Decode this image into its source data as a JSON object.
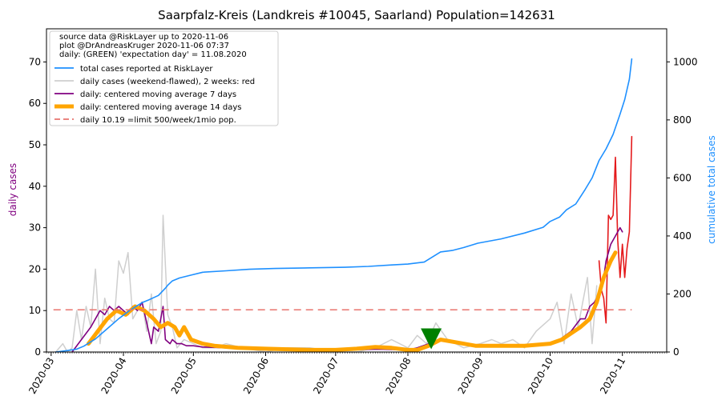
{
  "chart_data": {
    "type": "line",
    "title": "Saarpfalz-Kreis (Landkreis #10045, Saarland) Population=142631",
    "ylabel_left": "daily cases",
    "ylabel_right": "cumulative total cases",
    "ylim_left": [
      0,
      78
    ],
    "ylim_right": [
      0,
      1114
    ],
    "xlim": [
      "2020-02-28",
      "2020-11-20"
    ],
    "yticks_left": [
      0,
      10,
      20,
      30,
      40,
      50,
      60,
      70
    ],
    "yticks_right": [
      0,
      200,
      400,
      600,
      800,
      1000
    ],
    "xticks": [
      "2020-03",
      "2020-04",
      "2020-05",
      "2020-06",
      "2020-07",
      "2020-08",
      "2020-09",
      "2020-10",
      "2020-11"
    ],
    "legend": {
      "position": "top-left",
      "header": [
        "source data @RiskLayer up to 2020-11-06",
        "plot @DrAndreasKruger 2020-11-06 07:37",
        "daily: (GREEN) 'expectation day' = 11.08.2020"
      ],
      "entries": [
        {
          "label": "total cases reported at RiskLayer",
          "color": "#1e90ff",
          "style": "line"
        },
        {
          "label": "daily cases (weekend-flawed), 2 weeks: red",
          "color": "#cfcfcf",
          "style": "line"
        },
        {
          "label": "daily: centered moving average 7 days",
          "color": "#800080",
          "style": "line"
        },
        {
          "label": "daily: centered moving average 14 days",
          "color": "#ffa500",
          "style": "thick"
        },
        {
          "label": "daily 10.19 =limit 500/week/1mio pop.",
          "color": "#e8746e",
          "style": "dashed"
        }
      ]
    },
    "limit_line": {
      "value": 10.19,
      "x_start": "2020-03-02",
      "x_end": "2020-11-05"
    },
    "expectation_day": {
      "x": "2020-08-11",
      "y": 3
    },
    "series": [
      {
        "name": "total cases reported at RiskLayer",
        "axis": "right",
        "color": "#1e90ff",
        "x": [
          "2020-03-03",
          "2020-03-08",
          "2020-03-12",
          "2020-03-15",
          "2020-03-20",
          "2020-03-25",
          "2020-03-30",
          "2020-04-04",
          "2020-04-09",
          "2020-04-12",
          "2020-04-16",
          "2020-04-19",
          "2020-04-20",
          "2020-04-22",
          "2020-04-25",
          "2020-04-30",
          "2020-05-05",
          "2020-05-15",
          "2020-05-25",
          "2020-06-05",
          "2020-06-20",
          "2020-07-05",
          "2020-07-15",
          "2020-07-25",
          "2020-08-01",
          "2020-08-08",
          "2020-08-15",
          "2020-08-20",
          "2020-08-25",
          "2020-08-31",
          "2020-09-10",
          "2020-09-20",
          "2020-09-28",
          "2020-10-01",
          "2020-10-05",
          "2020-10-08",
          "2020-10-12",
          "2020-10-16",
          "2020-10-19",
          "2020-10-22",
          "2020-10-25",
          "2020-10-28",
          "2020-10-31",
          "2020-11-02",
          "2020-11-04",
          "2020-11-05"
        ],
        "values": [
          0,
          5,
          10,
          20,
          45,
          80,
          115,
          145,
          170,
          180,
          195,
          220,
          230,
          245,
          255,
          265,
          275,
          280,
          285,
          288,
          290,
          292,
          295,
          300,
          303,
          310,
          345,
          350,
          360,
          375,
          390,
          410,
          430,
          450,
          465,
          490,
          510,
          560,
          600,
          660,
          700,
          750,
          820,
          870,
          940,
          1010
        ]
      },
      {
        "name": "daily cases (weekend-flawed), 2 weeks: red",
        "axis": "left",
        "color": "#cfcfcf",
        "x": [
          "2020-03-03",
          "2020-03-06",
          "2020-03-08",
          "2020-03-10",
          "2020-03-12",
          "2020-03-14",
          "2020-03-16",
          "2020-03-18",
          "2020-03-20",
          "2020-03-22",
          "2020-03-24",
          "2020-03-26",
          "2020-03-28",
          "2020-03-30",
          "2020-04-01",
          "2020-04-03",
          "2020-04-05",
          "2020-04-07",
          "2020-04-09",
          "2020-04-11",
          "2020-04-13",
          "2020-04-15",
          "2020-04-17",
          "2020-04-18",
          "2020-04-20",
          "2020-04-22",
          "2020-04-24",
          "2020-04-27",
          "2020-05-01",
          "2020-05-05",
          "2020-05-10",
          "2020-05-15",
          "2020-05-22",
          "2020-06-01",
          "2020-06-10",
          "2020-06-20",
          "2020-07-01",
          "2020-07-10",
          "2020-07-18",
          "2020-07-25",
          "2020-08-01",
          "2020-08-05",
          "2020-08-09",
          "2020-08-13",
          "2020-08-18",
          "2020-08-25",
          "2020-09-01",
          "2020-09-06",
          "2020-09-10",
          "2020-09-15",
          "2020-09-20",
          "2020-09-25",
          "2020-10-01",
          "2020-10-04",
          "2020-10-07",
          "2020-10-10",
          "2020-10-13",
          "2020-10-15",
          "2020-10-17",
          "2020-10-19",
          "2020-10-21"
        ],
        "values": [
          0,
          2,
          0,
          1,
          10,
          3,
          11,
          6,
          20,
          2,
          13,
          8,
          7,
          22,
          19,
          24,
          8,
          10,
          12,
          5,
          14,
          2,
          5,
          33,
          9,
          6,
          1,
          3,
          2,
          1,
          1,
          2,
          1,
          0,
          1,
          1,
          0,
          0,
          1,
          3,
          1,
          4,
          2,
          7,
          3,
          1,
          2,
          3,
          2,
          3,
          1,
          5,
          8,
          12,
          2,
          14,
          6,
          12,
          18,
          2,
          16
        ]
      },
      {
        "name": "daily cases (last 2 weeks)",
        "axis": "left",
        "color": "#e41a1c",
        "x": [
          "2020-10-22",
          "2020-10-23",
          "2020-10-24",
          "2020-10-25",
          "2020-10-26",
          "2020-10-27",
          "2020-10-28",
          "2020-10-29",
          "2020-10-30",
          "2020-10-31",
          "2020-11-01",
          "2020-11-02",
          "2020-11-03",
          "2020-11-04",
          "2020-11-05"
        ],
        "values": [
          22,
          15,
          13,
          7,
          33,
          32,
          33,
          47,
          27,
          18,
          26,
          18,
          25,
          29,
          52
        ]
      },
      {
        "name": "daily: centered moving average 7 days",
        "axis": "left",
        "color": "#800080",
        "x": [
          "2020-03-10",
          "2020-03-14",
          "2020-03-18",
          "2020-03-22",
          "2020-03-24",
          "2020-03-26",
          "2020-03-28",
          "2020-03-30",
          "2020-04-01",
          "2020-04-03",
          "2020-04-05",
          "2020-04-07",
          "2020-04-09",
          "2020-04-11",
          "2020-04-13",
          "2020-04-14",
          "2020-04-16",
          "2020-04-18",
          "2020-04-19",
          "2020-04-21",
          "2020-04-22",
          "2020-04-24",
          "2020-04-26",
          "2020-04-28",
          "2020-05-01",
          "2020-05-05",
          "2020-05-15",
          "2020-06-01",
          "2020-07-01",
          "2020-07-20",
          "2020-08-01",
          "2020-08-05",
          "2020-08-10",
          "2020-08-15",
          "2020-08-20",
          "2020-08-25",
          "2020-09-01",
          "2020-09-10",
          "2020-09-20",
          "2020-10-01",
          "2020-10-05",
          "2020-10-10",
          "2020-10-14",
          "2020-10-16",
          "2020-10-18",
          "2020-10-20",
          "2020-10-22",
          "2020-10-24",
          "2020-10-25",
          "2020-10-27",
          "2020-10-29",
          "2020-10-31",
          "2020-11-01"
        ],
        "values": [
          0,
          3,
          6,
          10,
          9,
          11,
          10,
          11,
          10,
          9,
          11,
          10,
          12,
          7,
          2,
          6,
          5,
          11,
          3,
          2,
          3,
          2,
          2,
          1.5,
          1.5,
          1.2,
          1,
          0.5,
          0.5,
          0.7,
          0.5,
          1,
          2,
          3,
          2.5,
          2,
          1.5,
          1.5,
          1.5,
          2,
          3,
          5,
          8,
          8,
          11,
          12,
          14,
          18,
          22,
          26,
          28,
          30,
          29
        ]
      },
      {
        "name": "daily: centered moving average 14 days",
        "axis": "left",
        "color": "#ffa500",
        "x": [
          "2020-03-17",
          "2020-03-21",
          "2020-03-25",
          "2020-03-29",
          "2020-04-02",
          "2020-04-06",
          "2020-04-10",
          "2020-04-14",
          "2020-04-17",
          "2020-04-20",
          "2020-04-23",
          "2020-04-25",
          "2020-04-27",
          "2020-04-30",
          "2020-05-05",
          "2020-05-10",
          "2020-05-20",
          "2020-06-01",
          "2020-06-20",
          "2020-07-01",
          "2020-07-10",
          "2020-07-18",
          "2020-07-25",
          "2020-08-01",
          "2020-08-05",
          "2020-08-10",
          "2020-08-15",
          "2020-08-20",
          "2020-08-30",
          "2020-09-10",
          "2020-09-20",
          "2020-10-01",
          "2020-10-06",
          "2020-10-10",
          "2020-10-14",
          "2020-10-18",
          "2020-10-21",
          "2020-10-24",
          "2020-10-27",
          "2020-10-29"
        ],
        "values": [
          2,
          5,
          8,
          10,
          9,
          11,
          10,
          8,
          6,
          7,
          6,
          4,
          6,
          3,
          2,
          1.5,
          1,
          0.8,
          0.5,
          0.5,
          0.8,
          1.2,
          1,
          0.5,
          0.5,
          1.5,
          3,
          2.5,
          1.5,
          1.5,
          1.5,
          2,
          3,
          4.5,
          6,
          8,
          12,
          18,
          22,
          24
        ]
      }
    ]
  }
}
